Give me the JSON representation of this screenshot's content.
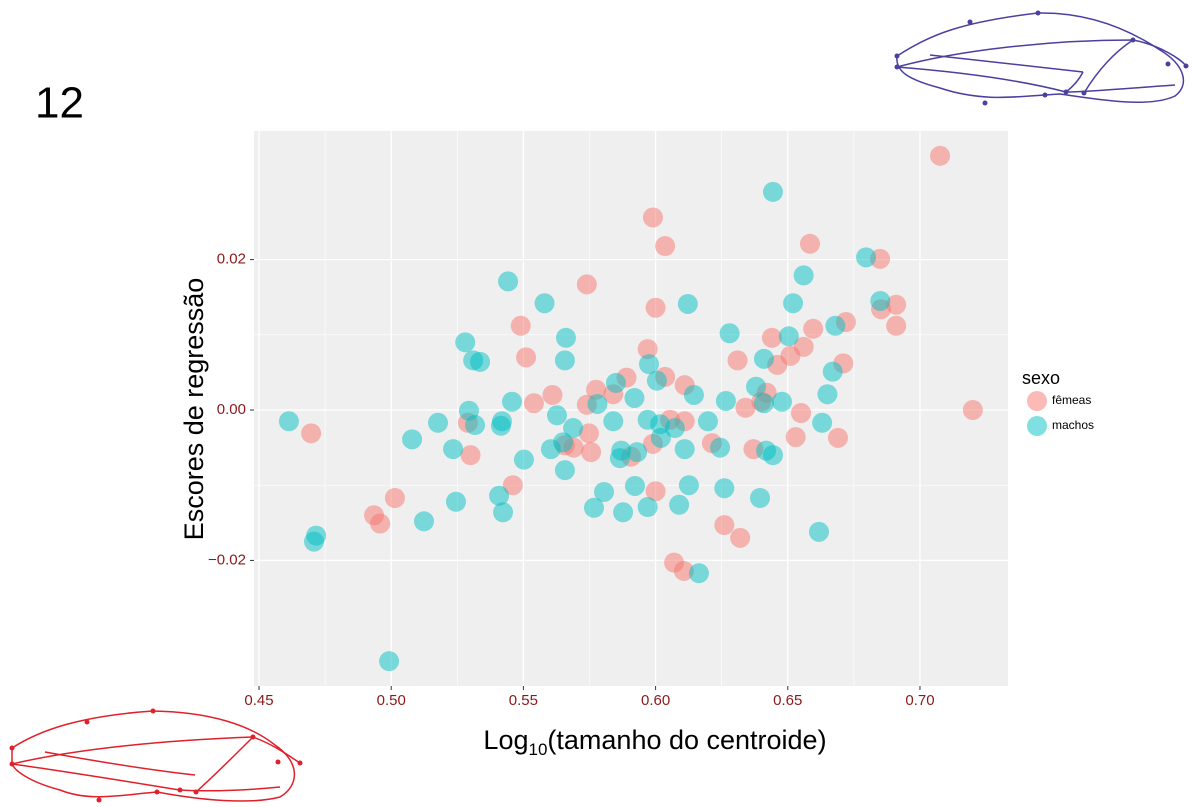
{
  "panel_label": "12",
  "chart_data": {
    "type": "scatter",
    "x_label": {
      "base": "Log",
      "subscript": "10",
      "rest": "(tamanho do centroide)"
    },
    "y_label": "Escores de regressão",
    "legend_title": "sexo",
    "legend": "right",
    "grid": true,
    "xlim": [
      0.4481,
      0.7333
    ],
    "ylim": [
      -0.0367,
      0.0371
    ],
    "xticks": [
      {
        "value": 0.45,
        "label": "0.45"
      },
      {
        "value": 0.5,
        "label": "0.50"
      },
      {
        "value": 0.55,
        "label": "0.55"
      },
      {
        "value": 0.6,
        "label": "0.60"
      },
      {
        "value": 0.65,
        "label": "0.65"
      },
      {
        "value": 0.7,
        "label": "0.70"
      }
    ],
    "yticks": [
      {
        "value": -0.02,
        "label": "−0.02"
      },
      {
        "value": 0,
        "label": "0.00"
      },
      {
        "value": 0.02,
        "label": "0.02"
      }
    ],
    "series": [
      {
        "name": "fêmeas",
        "color": "#F8766D",
        "x": [
          0.7076,
          0.72,
          0.599,
          0.6036,
          0.6584,
          0.6849,
          0.574,
          0.6,
          0.6853,
          0.691,
          0.691,
          0.672,
          0.549,
          0.551,
          0.6596,
          0.644,
          0.651,
          0.656,
          0.646,
          0.631,
          0.671,
          0.597,
          0.6036,
          0.589,
          0.611,
          0.5775,
          0.561,
          0.584,
          0.642,
          0.554,
          0.574,
          0.634,
          0.64,
          0.655,
          0.6055,
          0.611,
          0.529,
          0.4697,
          0.5748,
          0.5657,
          0.569,
          0.5756,
          0.599,
          0.6213,
          0.637,
          0.653,
          0.669,
          0.53,
          0.5907,
          0.546,
          0.6,
          0.5014,
          0.4935,
          0.4958,
          0.626,
          0.632,
          0.607,
          0.6107
        ],
        "values": [
          0.0338,
          0.0,
          0.0256,
          0.0218,
          0.0221,
          0.0201,
          0.0167,
          0.0136,
          0.0134,
          0.014,
          0.0112,
          0.0117,
          0.0112,
          0.007,
          0.0108,
          0.0096,
          0.0072,
          0.0084,
          0.006,
          0.0066,
          0.0062,
          0.0081,
          0.0044,
          0.0043,
          0.0033,
          0.0027,
          0.002,
          0.0021,
          0.0023,
          0.0009,
          0.0007,
          0.0003,
          0.0011,
          -0.0004,
          -0.0013,
          -0.0015,
          -0.0017,
          -0.0031,
          -0.0031,
          -0.0047,
          -0.005,
          -0.0056,
          -0.0045,
          -0.0044,
          -0.0052,
          -0.0036,
          -0.0037,
          -0.006,
          -0.0062,
          -0.01,
          -0.0108,
          -0.0117,
          -0.014,
          -0.0151,
          -0.0153,
          -0.017,
          -0.0203,
          -0.0214
        ]
      },
      {
        "name": "machos",
        "color": "#00BFC4",
        "x": [
          0.6444,
          0.6796,
          0.5442,
          0.656,
          0.558,
          0.6122,
          0.685,
          0.652,
          0.668,
          0.6504,
          0.628,
          0.5661,
          0.528,
          0.531,
          0.5336,
          0.5657,
          0.5975,
          0.641,
          0.667,
          0.585,
          0.6005,
          0.6145,
          0.638,
          0.5457,
          0.578,
          0.592,
          0.6266,
          0.641,
          0.6478,
          0.665,
          0.4613,
          0.5294,
          0.5627,
          0.5177,
          0.5317,
          0.5419,
          0.5415,
          0.584,
          0.597,
          0.6017,
          0.6073,
          0.6198,
          0.5688,
          0.663,
          0.5079,
          0.5234,
          0.565,
          0.5604,
          0.587,
          0.593,
          0.602,
          0.611,
          0.6244,
          0.6418,
          0.6444,
          0.5865,
          0.5502,
          0.5657,
          0.5805,
          0.5922,
          0.626,
          0.6126,
          0.5408,
          0.5245,
          0.6395,
          0.6089,
          0.597,
          0.5767,
          0.5877,
          0.5423,
          0.5124,
          0.6618,
          0.4716,
          0.4708,
          0.6164,
          0.4992
        ],
        "values": [
          0.029,
          0.0203,
          0.0171,
          0.0179,
          0.0142,
          0.0141,
          0.0145,
          0.0142,
          0.0112,
          0.0098,
          0.0102,
          0.0096,
          0.009,
          0.0066,
          0.0064,
          0.0066,
          0.0061,
          0.0068,
          0.0051,
          0.0036,
          0.0039,
          0.002,
          0.0031,
          0.0011,
          0.0008,
          0.0016,
          0.0012,
          0.0009,
          0.0011,
          0.0021,
          -0.0015,
          -0.0001,
          -0.0007,
          -0.0017,
          -0.002,
          -0.0015,
          -0.0021,
          -0.0015,
          -0.0013,
          -0.0019,
          -0.0024,
          -0.0015,
          -0.0024,
          -0.0017,
          -0.0039,
          -0.0052,
          -0.0043,
          -0.0052,
          -0.0054,
          -0.0056,
          -0.0037,
          -0.0052,
          -0.005,
          -0.0054,
          -0.006,
          -0.0064,
          -0.0066,
          -0.008,
          -0.0109,
          -0.0101,
          -0.0104,
          -0.01,
          -0.0114,
          -0.0122,
          -0.0117,
          -0.0126,
          -0.0129,
          -0.013,
          -0.0136,
          -0.0136,
          -0.0148,
          -0.0162,
          -0.0167,
          -0.0175,
          -0.0217,
          -0.0334
        ]
      }
    ]
  }
}
